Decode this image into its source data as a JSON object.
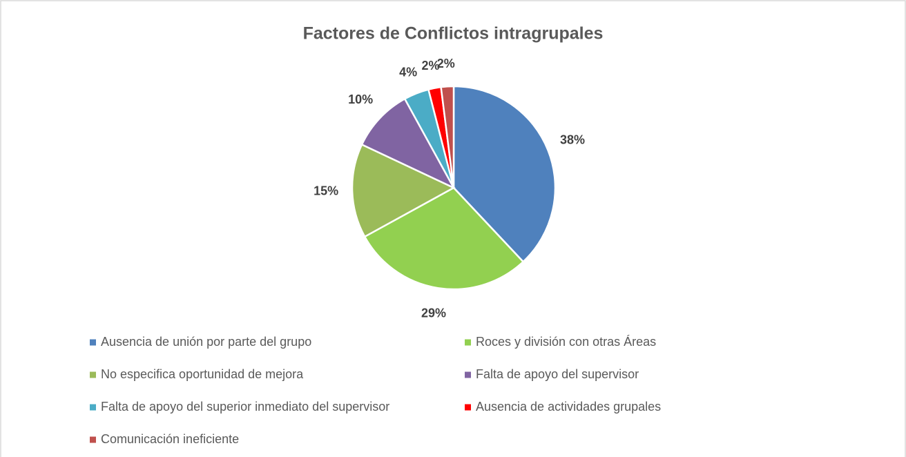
{
  "chart_data": {
    "type": "pie",
    "title": "Factores de Conflictos intragrupales",
    "categories": [
      "Ausencia de unión por parte del grupo",
      "Roces y división con otras Áreas",
      "No especifica oportunidad de mejora",
      "Falta de apoyo del supervisor",
      "Falta de apoyo del superior inmediato del supervisor",
      "Ausencia de actividades grupales",
      "Comunicación ineficiente"
    ],
    "values": [
      38,
      29,
      15,
      10,
      4,
      2,
      2
    ],
    "value_labels": [
      "38%",
      "29%",
      "15%",
      "10%",
      "4%",
      "2%",
      "2%"
    ],
    "colors": [
      "#4f81bd",
      "#92d050",
      "#9bbb59",
      "#8064a2",
      "#4bacc6",
      "#ff0000",
      "#c0504d"
    ],
    "legend": "bottom"
  }
}
